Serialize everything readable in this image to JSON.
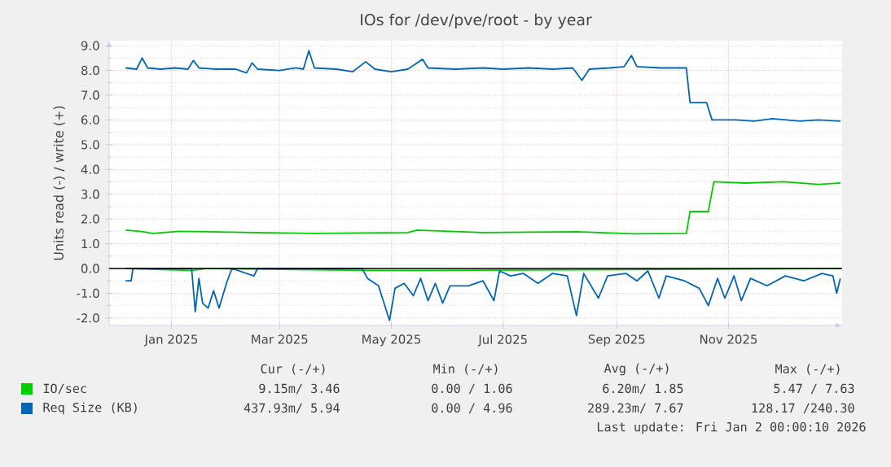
{
  "chart_data": {
    "type": "line",
    "title": "IOs for /dev/pve/root - by year",
    "ylabel": "Units read (-) / write (+)",
    "xlim": [
      "2024-11-28",
      "2026-01-02"
    ],
    "xticks": [
      {
        "value": "2025-01-01",
        "label": "Jan 2025"
      },
      {
        "value": "2025-03-01",
        "label": "Mar 2025"
      },
      {
        "value": "2025-05-01",
        "label": "May 2025"
      },
      {
        "value": "2025-07-01",
        "label": "Jul 2025"
      },
      {
        "value": "2025-09-01",
        "label": "Sep 2025"
      },
      {
        "value": "2025-11-01",
        "label": "Nov 2025"
      }
    ],
    "ylim": [
      -2.3,
      9.2
    ],
    "yticks": [
      {
        "value": -2,
        "label": "-2.0"
      },
      {
        "value": -1,
        "label": "-1.0"
      },
      {
        "value": 0,
        "label": "0.0"
      },
      {
        "value": 1,
        "label": "1.0"
      },
      {
        "value": 2,
        "label": "2.0"
      },
      {
        "value": 3,
        "label": "3.0"
      },
      {
        "value": 4,
        "label": "4.0"
      },
      {
        "value": 5,
        "label": "5.0"
      },
      {
        "value": 6,
        "label": "6.0"
      },
      {
        "value": 7,
        "label": "7.0"
      },
      {
        "value": 8,
        "label": "8.0"
      },
      {
        "value": 9,
        "label": "9.0"
      }
    ],
    "grid": true,
    "legend": "bottom",
    "marker": "none",
    "line_style": "solid",
    "ref_lines": [
      {
        "axis": "y",
        "value": 0,
        "color": "#000000"
      }
    ],
    "series": [
      {
        "name": "IO/sec",
        "color": "#00cc00",
        "x": [
          "2024-12-07",
          "2024-12-15",
          "2024-12-22",
          "2025-01-05",
          "2025-02-15",
          "2025-03-20",
          "2025-05-10",
          "2025-05-15",
          "2025-06-20",
          "2025-08-10",
          "2025-09-10",
          "2025-10-09",
          "2025-10-11",
          "2025-10-21",
          "2025-10-24",
          "2025-11-10",
          "2025-12-01",
          "2025-12-20",
          "2026-01-01"
        ],
        "values": [
          1.55,
          1.5,
          1.42,
          1.5,
          1.45,
          1.42,
          1.45,
          1.55,
          1.45,
          1.48,
          1.4,
          1.42,
          2.3,
          2.3,
          3.5,
          3.45,
          3.5,
          3.4,
          3.45
        ]
      },
      {
        "color": "#00cc00",
        "x": [
          "2024-12-07",
          "2025-01-12",
          "2025-01-20",
          "2025-04-20",
          "2025-05-20",
          "2026-01-01"
        ],
        "values": [
          0,
          -0.08,
          0,
          -0.08,
          -0.08,
          0
        ]
      },
      {
        "name": "Req Size (KB)",
        "color": "#0066b3",
        "x": [
          "2024-12-07",
          "2024-12-13",
          "2024-12-16",
          "2024-12-19",
          "2024-12-26",
          "2025-01-03",
          "2025-01-10",
          "2025-01-13",
          "2025-01-16",
          "2025-01-25",
          "2025-02-05",
          "2025-02-11",
          "2025-02-14",
          "2025-02-17",
          "2025-03-01",
          "2025-03-10",
          "2025-03-14",
          "2025-03-17",
          "2025-03-20",
          "2025-04-01",
          "2025-04-10",
          "2025-04-17",
          "2025-04-22",
          "2025-05-01",
          "2025-05-10",
          "2025-05-18",
          "2025-05-21",
          "2025-06-05",
          "2025-06-20",
          "2025-07-01",
          "2025-07-15",
          "2025-07-28",
          "2025-08-08",
          "2025-08-13",
          "2025-08-17",
          "2025-08-28",
          "2025-09-05",
          "2025-09-09",
          "2025-09-12",
          "2025-09-25",
          "2025-10-09",
          "2025-10-11",
          "2025-10-20",
          "2025-10-23",
          "2025-11-05",
          "2025-11-15",
          "2025-11-25",
          "2025-12-10",
          "2025-12-20",
          "2026-01-01"
        ],
        "values": [
          8.1,
          8.05,
          8.5,
          8.1,
          8.05,
          8.1,
          8.05,
          8.4,
          8.1,
          8.05,
          8.05,
          7.9,
          8.3,
          8.05,
          8.0,
          8.1,
          8.05,
          8.8,
          8.1,
          8.05,
          7.95,
          8.35,
          8.05,
          7.95,
          8.05,
          8.45,
          8.1,
          8.05,
          8.1,
          8.05,
          8.1,
          8.05,
          8.1,
          7.6,
          8.05,
          8.1,
          8.15,
          8.6,
          8.15,
          8.1,
          8.1,
          6.7,
          6.7,
          6.0,
          6.0,
          5.95,
          6.05,
          5.95,
          6.0,
          5.95
        ]
      },
      {
        "color": "#0066b3",
        "x": [
          "2024-12-07",
          "2024-12-10",
          "2024-12-11",
          "2025-01-12",
          "2025-01-14",
          "2025-01-16",
          "2025-01-18",
          "2025-01-21",
          "2025-01-24",
          "2025-01-27",
          "2025-01-31",
          "2025-02-03",
          "2025-02-15",
          "2025-02-17",
          "2025-04-15",
          "2025-04-18",
          "2025-04-24",
          "2025-04-30",
          "2025-05-03",
          "2025-05-08",
          "2025-05-13",
          "2025-05-17",
          "2025-05-21",
          "2025-05-25",
          "2025-05-29",
          "2025-06-02",
          "2025-06-12",
          "2025-06-20",
          "2025-06-26",
          "2025-06-29",
          "2025-07-05",
          "2025-07-12",
          "2025-07-20",
          "2025-07-28",
          "2025-08-05",
          "2025-08-10",
          "2025-08-14",
          "2025-08-22",
          "2025-08-27",
          "2025-09-06",
          "2025-09-12",
          "2025-09-18",
          "2025-09-24",
          "2025-09-28",
          "2025-10-08",
          "2025-10-16",
          "2025-10-21",
          "2025-10-26",
          "2025-10-30",
          "2025-11-04",
          "2025-11-08",
          "2025-11-13",
          "2025-11-22",
          "2025-12-02",
          "2025-12-12",
          "2025-12-22",
          "2025-12-28",
          "2025-12-30",
          "2026-01-01"
        ],
        "values": [
          -0.5,
          -0.5,
          0,
          0,
          -1.75,
          -0.4,
          -1.4,
          -1.6,
          -0.9,
          -1.6,
          -0.6,
          0,
          -0.3,
          0,
          0,
          -0.4,
          -0.7,
          -2.1,
          -0.8,
          -0.6,
          -1.1,
          -0.4,
          -1.3,
          -0.6,
          -1.4,
          -0.7,
          -0.7,
          -0.5,
          -1.3,
          -0.1,
          -0.3,
          -0.2,
          -0.6,
          -0.2,
          -0.3,
          -1.9,
          -0.2,
          -1.2,
          -0.3,
          -0.2,
          -0.5,
          -0.1,
          -1.2,
          -0.3,
          -0.5,
          -0.8,
          -1.5,
          -0.4,
          -1.2,
          -0.3,
          -1.3,
          -0.4,
          -0.7,
          -0.3,
          -0.5,
          -0.2,
          -0.3,
          -1.0,
          -0.4
        ]
      }
    ],
    "annotations": [
      "Cur (-/+)",
      "Min (-/+)",
      "Avg (-/+)",
      "Max (-/+)",
      "9.15m/  3.46",
      "0.00 /  1.06",
      "6.20m/  1.85",
      "5.47 /  7.63",
      "437.93m/  5.94",
      "0.00 /  4.96",
      "289.23m/  7.67",
      "128.17 /240.30",
      "Last update: Fri Jan  2 00:00:10 2026"
    ]
  }
}
